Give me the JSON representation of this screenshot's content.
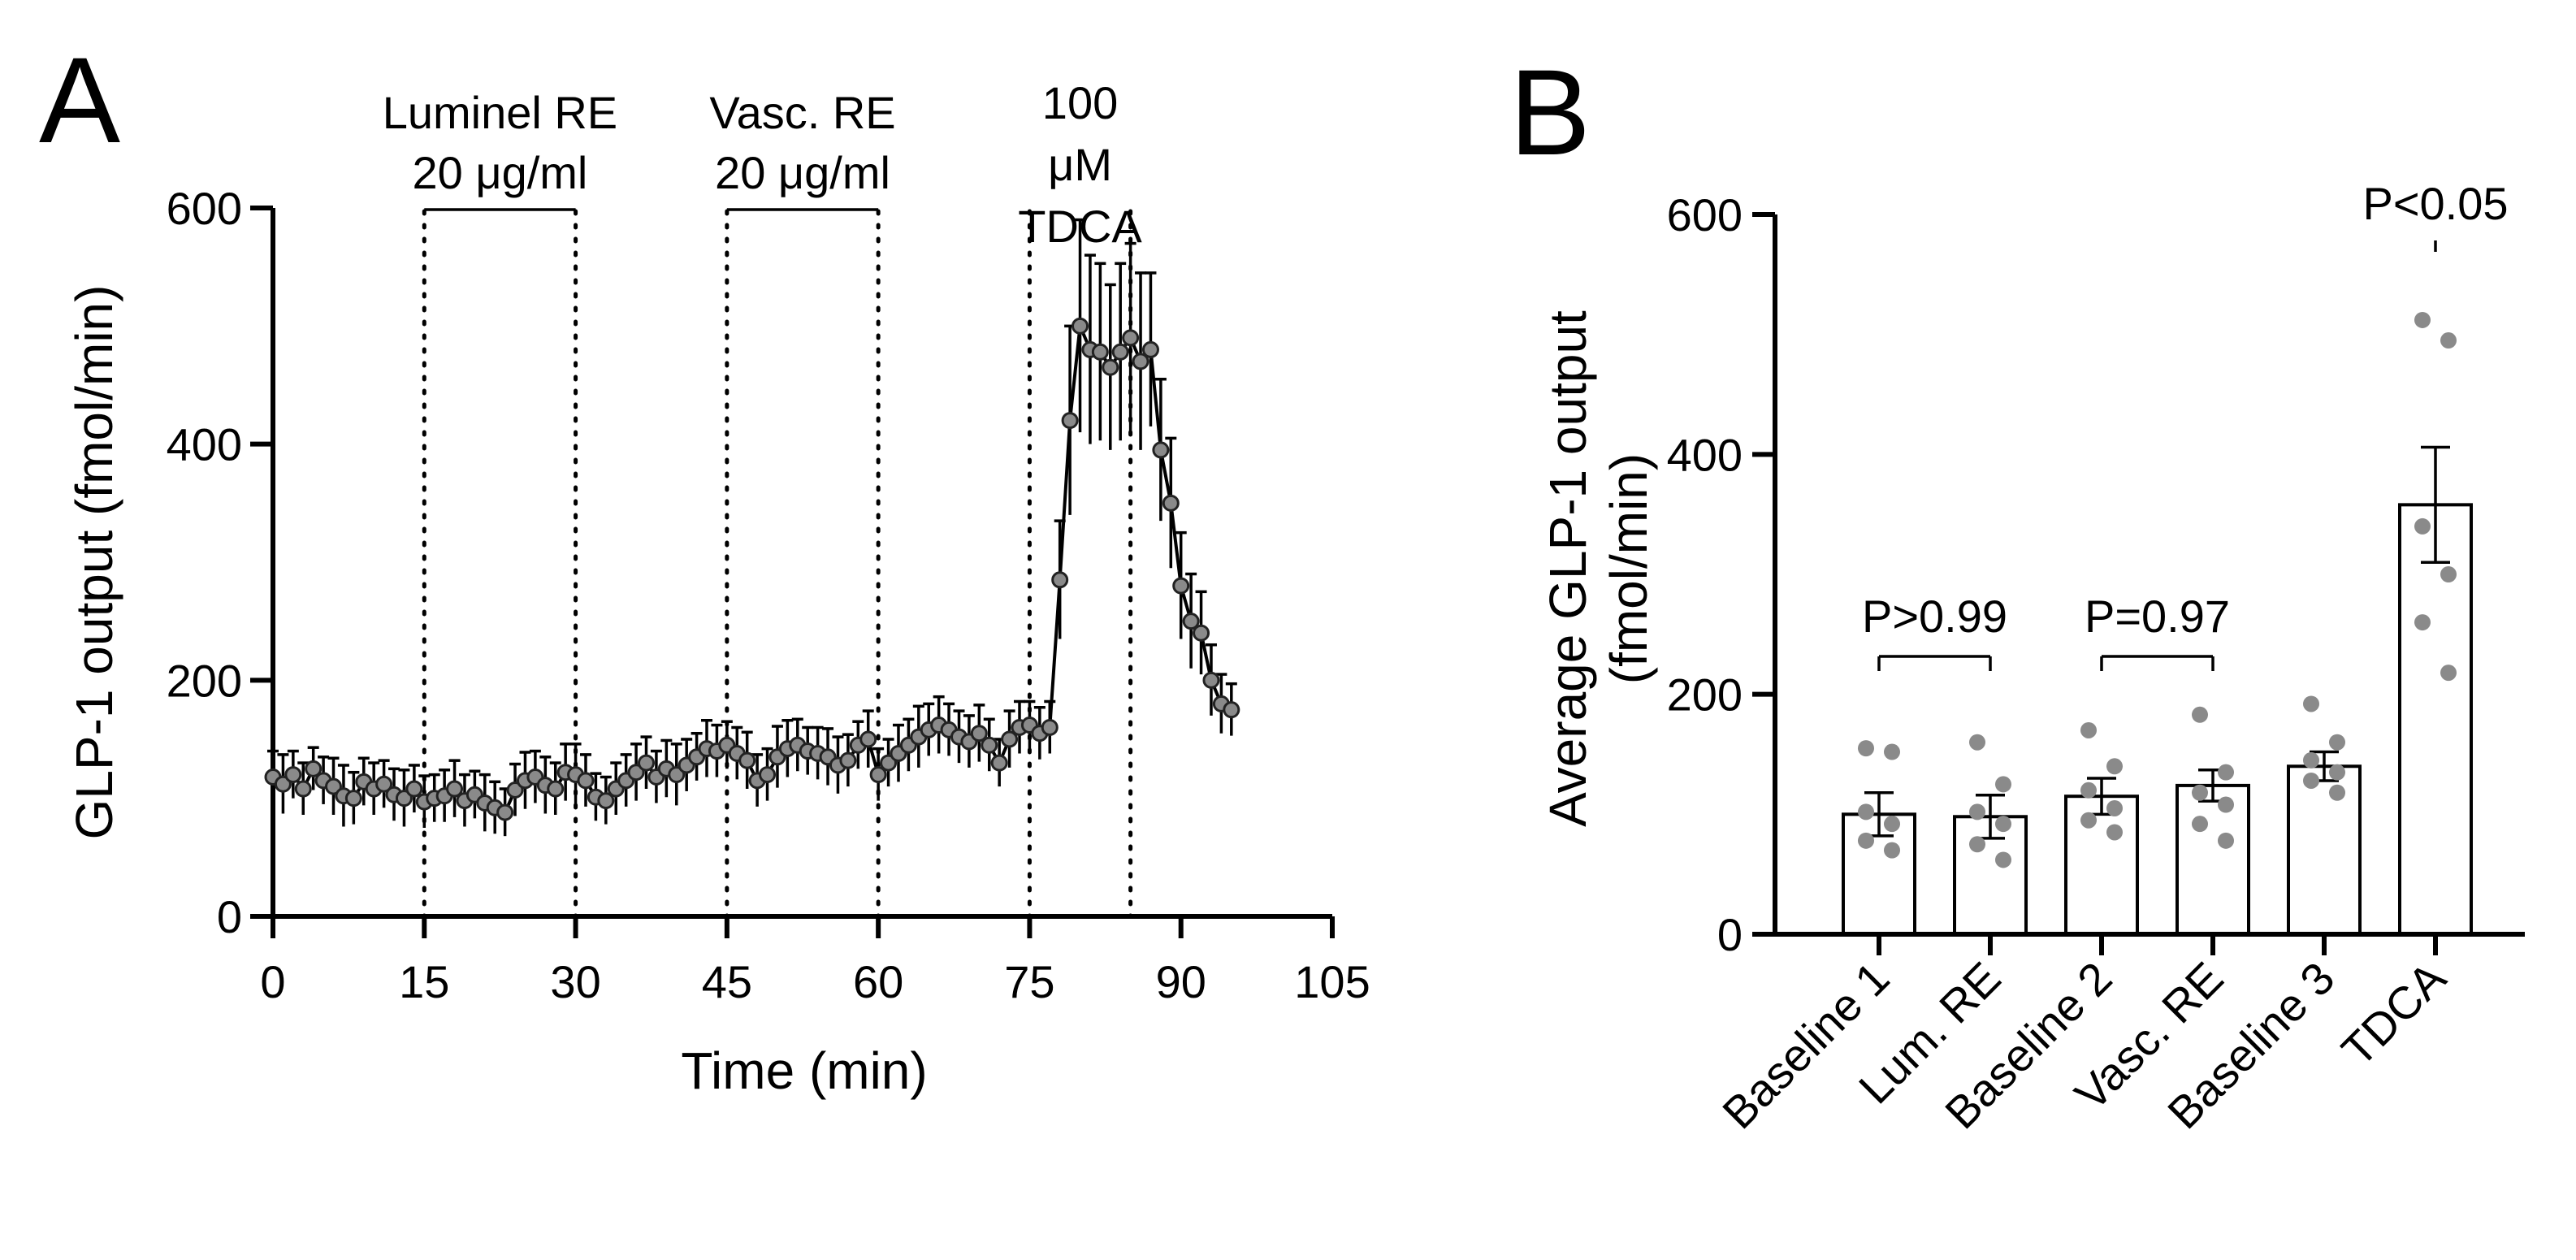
{
  "panels": {
    "A": {
      "label": "A"
    },
    "B": {
      "label": "B"
    }
  },
  "chart_data": [
    {
      "id": "A",
      "type": "line",
      "title": "",
      "xlabel": "Time (min)",
      "ylabel": "GLP-1 output  (fmol/min)",
      "xlim": [
        0,
        105
      ],
      "ylim": [
        0,
        600
      ],
      "x_ticks": [
        "0",
        "15",
        "30",
        "45",
        "60",
        "75",
        "90",
        "105"
      ],
      "y_ticks": [
        "0",
        "200",
        "400",
        "600"
      ],
      "x": [
        0,
        1,
        2,
        3,
        4,
        5,
        6,
        7,
        8,
        9,
        10,
        11,
        12,
        13,
        14,
        15,
        16,
        17,
        18,
        19,
        20,
        21,
        22,
        23,
        24,
        25,
        26,
        27,
        28,
        29,
        30,
        31,
        32,
        33,
        34,
        35,
        36,
        37,
        38,
        39,
        40,
        41,
        42,
        43,
        44,
        45,
        46,
        47,
        48,
        49,
        50,
        51,
        52,
        53,
        54,
        55,
        56,
        57,
        58,
        59,
        60,
        61,
        62,
        63,
        64,
        65,
        66,
        67,
        68,
        69,
        70,
        71,
        72,
        73,
        74,
        75,
        76,
        77,
        78,
        79,
        80,
        81,
        82,
        83,
        84,
        85,
        86,
        87,
        88,
        89,
        90,
        91,
        92,
        93,
        94,
        95
      ],
      "values": [
        118,
        112,
        120,
        108,
        125,
        115,
        110,
        102,
        100,
        114,
        108,
        112,
        103,
        100,
        108,
        97,
        100,
        102,
        108,
        98,
        103,
        96,
        92,
        88,
        107,
        115,
        118,
        111,
        108,
        122,
        120,
        115,
        101,
        98,
        108,
        115,
        122,
        130,
        118,
        125,
        120,
        128,
        135,
        142,
        140,
        145,
        138,
        132,
        115,
        120,
        135,
        142,
        145,
        140,
        138,
        135,
        128,
        132,
        145,
        150,
        120,
        130,
        138,
        145,
        152,
        158,
        162,
        158,
        152,
        148,
        155,
        145,
        130,
        150,
        160,
        162,
        155,
        160,
        285,
        420,
        500,
        480,
        478,
        465,
        478,
        490,
        470,
        480,
        395,
        350,
        280,
        250,
        240,
        200,
        180,
        175
      ],
      "errors": [
        22,
        25,
        20,
        22,
        18,
        20,
        24,
        26,
        22,
        20,
        22,
        20,
        22,
        24,
        20,
        22,
        20,
        22,
        24,
        22,
        20,
        24,
        22,
        20,
        22,
        24,
        22,
        24,
        22,
        24,
        26,
        22,
        20,
        20,
        22,
        22,
        24,
        22,
        22,
        24,
        26,
        22,
        20,
        24,
        22,
        20,
        22,
        24,
        22,
        22,
        26,
        24,
        22,
        20,
        22,
        24,
        24,
        22,
        20,
        24,
        22,
        20,
        24,
        22,
        26,
        22,
        24,
        22,
        22,
        22,
        24,
        22,
        20,
        24,
        22,
        20,
        22,
        22,
        50,
        80,
        90,
        80,
        75,
        70,
        75,
        80,
        75,
        65,
        60,
        55,
        45,
        40,
        35,
        30,
        25,
        22
      ],
      "regions": [
        {
          "start": 15,
          "end": 30,
          "label_line1": "Luminel RE",
          "label_line2": "20 μg/ml"
        },
        {
          "start": 45,
          "end": 60,
          "label_line1": "Vasc.  RE",
          "label_line2": "20 μg/ml"
        },
        {
          "start": 75,
          "end": 85,
          "label_line1": "100",
          "label_line2": "μM",
          "label_line3": "TDCA"
        }
      ]
    },
    {
      "id": "B",
      "type": "bar",
      "title": "",
      "xlabel": "",
      "ylabel_line1": "Average  GLP-1 output",
      "ylabel_line2": "(fmol/min)",
      "ylim": [
        0,
        600
      ],
      "y_ticks": [
        "0",
        "200",
        "400",
        "600"
      ],
      "categories": [
        "Baseline 1",
        "Lum. RE",
        "Baseline 2",
        "Vasc. RE",
        "Baseline 3",
        "TDCA"
      ],
      "values": [
        100,
        98,
        115,
        124,
        140,
        358
      ],
      "errors": [
        18,
        18,
        15,
        13,
        12,
        48
      ],
      "points": [
        [
          155,
          152,
          102,
          92,
          78,
          70
        ],
        [
          160,
          125,
          102,
          92,
          75,
          62
        ],
        [
          170,
          140,
          120,
          105,
          95,
          85
        ],
        [
          183,
          135,
          118,
          108,
          92,
          78
        ],
        [
          192,
          160,
          145,
          135,
          128,
          118
        ],
        [
          512,
          495,
          340,
          300,
          260,
          218
        ]
      ],
      "comparisons": [
        {
          "from": 0,
          "to": 1,
          "label": "P>0.99"
        },
        {
          "from": 2,
          "to": 3,
          "label": "P=0.97"
        },
        {
          "from": 5,
          "to": 5,
          "label": "P<0.05"
        }
      ]
    }
  ]
}
